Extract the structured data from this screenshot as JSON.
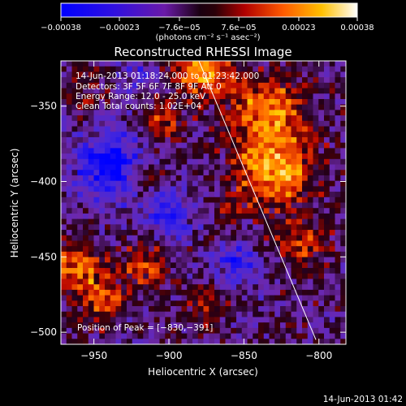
{
  "chart_data": {
    "type": "heatmap",
    "title": "Reconstructed RHESSI Image",
    "xlabel": "Heliocentric X (arcsec)",
    "ylabel": "Heliocentric Y (arcsec)",
    "xlim": [
      -972,
      -782
    ],
    "ylim": [
      -508,
      -320
    ],
    "x_ticks": [
      -950,
      -900,
      -850,
      -800
    ],
    "x_tick_labels": [
      "−950",
      "−900",
      "−850",
      "−800"
    ],
    "y_ticks": [
      -500,
      -450,
      -400,
      -350
    ],
    "y_tick_labels": [
      "−500",
      "−450",
      "−400",
      "−350"
    ],
    "colorbar": {
      "min": -0.00038,
      "max": 0.00038,
      "ticks": [
        -0.00038,
        -0.00023,
        -7.6e-05,
        7.6e-05,
        0.00023,
        0.00038
      ],
      "tick_labels": [
        "−0.00038",
        "−0.00023",
        "−7.6e−05",
        "7.6e−05",
        "0.00023",
        "0.00038"
      ],
      "units_label": "(photons cm⁻² s⁻¹ asec⁻²)",
      "colormap": [
        "#0000ff",
        "#5a1dd4",
        "#7b2fb8",
        "#4a1270",
        "#a8005a",
        "#e81a00",
        "#ff8a00",
        "#ffd000",
        "#ffffff"
      ]
    },
    "annotations": {
      "time_range": "14-Jun-2013 01:18:24.000 to 01:23:42.000",
      "detectors": "Detectors: 3F 5F 6F 7F 8F 9F  Att 0",
      "energy": "Energy Range: 12.0 - 25.0 keV",
      "method": "Clean    Total counts: 1.02E+04",
      "peak": "Position of Peak = [−830,−391]"
    },
    "peak": {
      "x": -830,
      "y": -391
    },
    "limb_line": {
      "x": [
        -880,
        -802
      ],
      "y": [
        -320,
        -505
      ]
    },
    "grid": false
  },
  "footer": {
    "timestamp": "14-Jun-2013 01:42"
  }
}
